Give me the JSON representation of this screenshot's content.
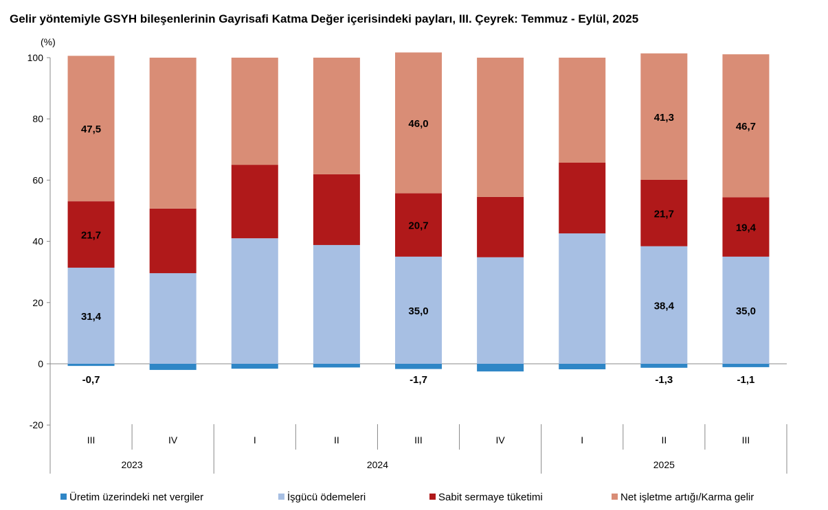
{
  "chart_data": {
    "type": "bar",
    "stacked": true,
    "title": "Gelir yöntemiyle GSYH bileşenlerinin Gayrisafi Katma Değer içerisindeki payları, III. Çeyrek: Temmuz - Eylül, 2025",
    "ylabel": "(%)",
    "ylim": [
      -20,
      100
    ],
    "yticks": [
      -20,
      0,
      20,
      40,
      60,
      80,
      100
    ],
    "categories": [
      "III",
      "IV",
      "I",
      "II",
      "III",
      "IV",
      "I",
      "II",
      "III"
    ],
    "years": [
      {
        "label": "2023",
        "span": 2
      },
      {
        "label": "2024",
        "span": 4
      },
      {
        "label": "2025",
        "span": 3
      }
    ],
    "legend_position": "bottom",
    "series": [
      {
        "name": "Üretim üzerindeki net vergiler",
        "color": "#2F86C6",
        "values": [
          -0.7,
          -2.0,
          -1.6,
          -1.2,
          -1.7,
          -2.5,
          -1.8,
          -1.3,
          -1.1
        ],
        "labels": [
          "-0,7",
          null,
          null,
          null,
          "-1,7",
          null,
          null,
          "-1,3",
          "-1,1"
        ]
      },
      {
        "name": "İşgücü ödemeleri",
        "color": "#A7BFE3",
        "values": [
          31.4,
          29.6,
          41.0,
          38.8,
          35.0,
          34.8,
          42.6,
          38.4,
          35.0
        ],
        "labels": [
          "31,4",
          null,
          null,
          null,
          "35,0",
          null,
          null,
          "38,4",
          "35,0"
        ]
      },
      {
        "name": "Sabit sermaye tüketimi",
        "color": "#B0191A",
        "values": [
          21.7,
          21.1,
          24.0,
          23.1,
          20.7,
          19.7,
          23.1,
          21.7,
          19.4
        ],
        "labels": [
          "21,7",
          null,
          null,
          null,
          "20,7",
          null,
          null,
          "21,7",
          "19,4"
        ]
      },
      {
        "name": "Net işletme artığı/Karma gelir",
        "color": "#D98D76",
        "values": [
          47.5,
          49.3,
          35.0,
          38.1,
          46.0,
          45.5,
          34.3,
          41.3,
          46.7
        ],
        "labels": [
          "47,5",
          null,
          null,
          null,
          "46,0",
          null,
          null,
          "41,3",
          "46,7"
        ]
      }
    ]
  }
}
